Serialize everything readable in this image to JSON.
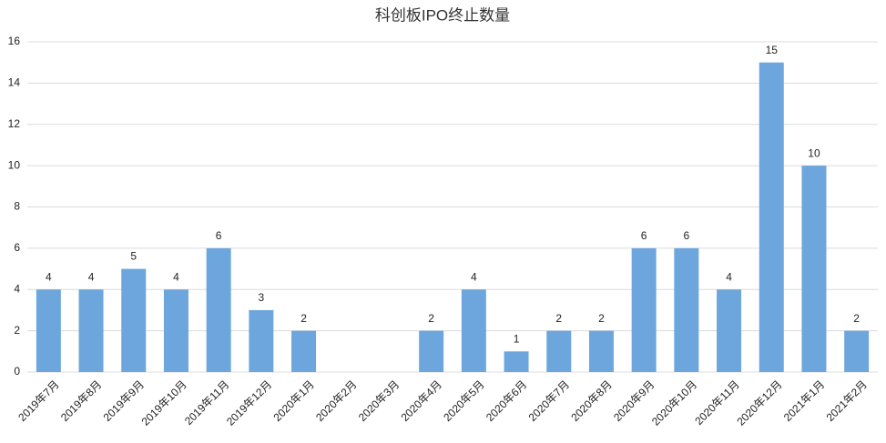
{
  "chart_data": {
    "type": "bar",
    "title": "科创板IPO终止数量",
    "categories": [
      "2019年7月",
      "2019年8月",
      "2019年9月",
      "2019年10月",
      "2019年11月",
      "2019年12月",
      "2020年1月",
      "2020年2月",
      "2020年3月",
      "2020年4月",
      "2020年5月",
      "2020年6月",
      "2020年7月",
      "2020年8月",
      "2020年9月",
      "2020年10月",
      "2020年11月",
      "2020年12月",
      "2021年1月",
      "2021年2月"
    ],
    "values": [
      4,
      4,
      5,
      4,
      6,
      3,
      2,
      null,
      null,
      2,
      4,
      1,
      2,
      2,
      6,
      6,
      4,
      15,
      10,
      2
    ],
    "color": "#6ca6dc",
    "ylim": [
      0,
      16
    ],
    "yticks": [
      0,
      2,
      4,
      6,
      8,
      10,
      12,
      14,
      16
    ],
    "grid": true
  }
}
